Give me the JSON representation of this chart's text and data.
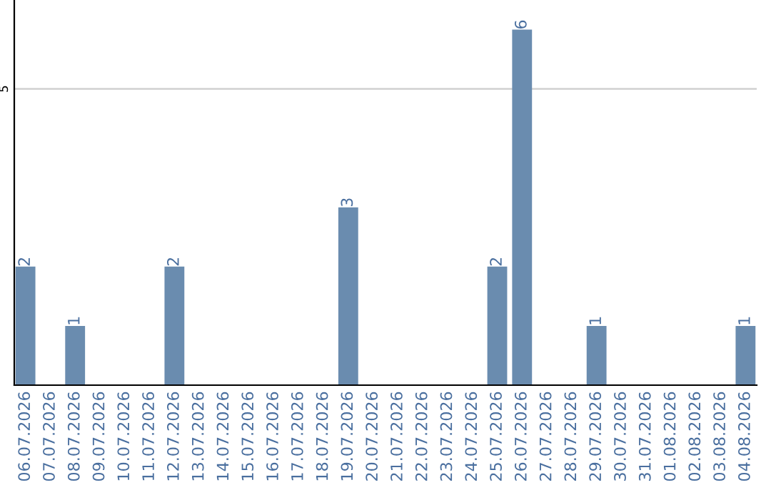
{
  "chart_data": {
    "type": "bar",
    "categories": [
      "06.07.2026",
      "07.07.2026",
      "08.07.2026",
      "09.07.2026",
      "10.07.2026",
      "11.07.2026",
      "12.07.2026",
      "13.07.2026",
      "14.07.2026",
      "15.07.2026",
      "16.07.2026",
      "17.07.2026",
      "18.07.2026",
      "19.07.2026",
      "20.07.2026",
      "21.07.2026",
      "22.07.2026",
      "23.07.2026",
      "24.07.2026",
      "25.07.2026",
      "26.07.2026",
      "27.07.2026",
      "28.07.2026",
      "29.07.2026",
      "30.07.2026",
      "31.07.2026",
      "01.08.2026",
      "02.08.2026",
      "03.08.2026",
      "04.08.2026"
    ],
    "values": [
      2,
      0,
      1,
      0,
      0,
      0,
      2,
      0,
      0,
      0,
      0,
      0,
      0,
      3,
      0,
      0,
      0,
      0,
      0,
      2,
      6,
      0,
      0,
      1,
      0,
      0,
      0,
      0,
      0,
      1
    ],
    "value_labels": [
      "2",
      null,
      "1",
      null,
      null,
      null,
      "2",
      null,
      null,
      null,
      null,
      null,
      null,
      "3",
      null,
      null,
      null,
      null,
      null,
      "2",
      "6",
      null,
      null,
      "1",
      null,
      null,
      null,
      null,
      null,
      "1"
    ],
    "color": "#6a8caf",
    "ylim": [
      0,
      6.5
    ],
    "yticks": [
      5
    ],
    "grid": "y",
    "legend": false
  }
}
